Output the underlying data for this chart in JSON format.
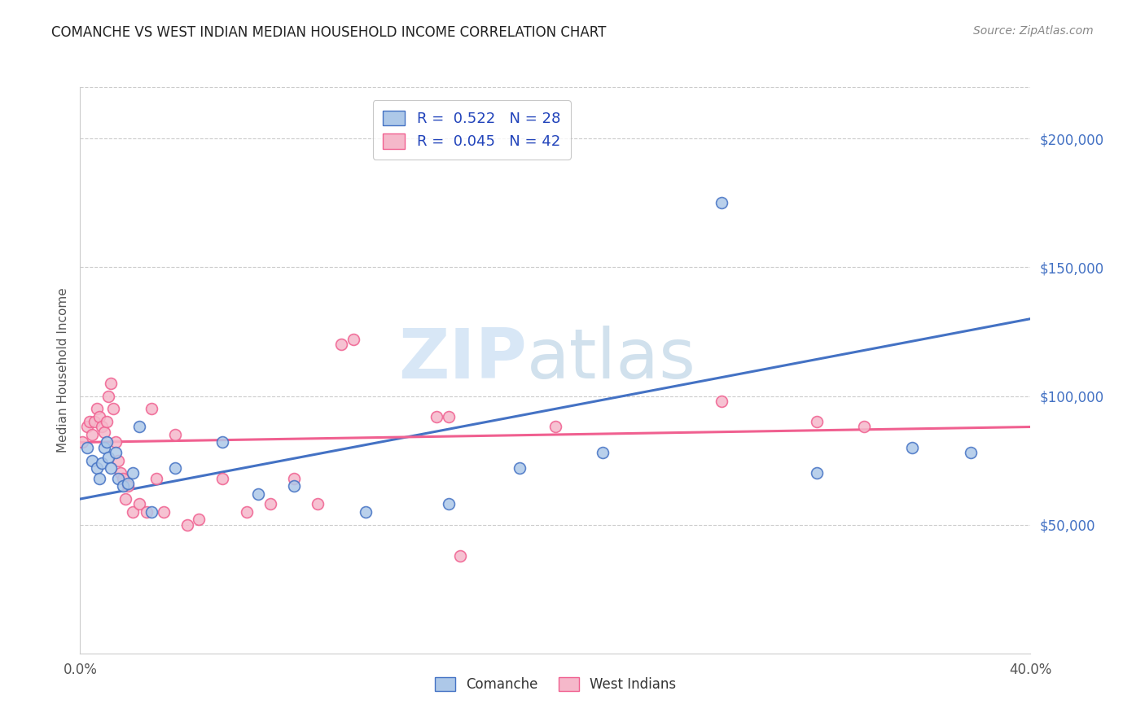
{
  "title": "COMANCHE VS WEST INDIAN MEDIAN HOUSEHOLD INCOME CORRELATION CHART",
  "source": "Source: ZipAtlas.com",
  "ylabel": "Median Household Income",
  "x_min": 0.0,
  "x_max": 0.4,
  "y_min": 0,
  "y_max": 220000,
  "x_ticks": [
    0.0,
    0.05,
    0.1,
    0.15,
    0.2,
    0.25,
    0.3,
    0.35,
    0.4
  ],
  "x_tick_labels": [
    "0.0%",
    "",
    "",
    "",
    "",
    "",
    "",
    "",
    "40.0%"
  ],
  "y_ticks_right": [
    50000,
    100000,
    150000,
    200000
  ],
  "y_tick_labels_right": [
    "$50,000",
    "$100,000",
    "$150,000",
    "$200,000"
  ],
  "comanche_R": 0.522,
  "comanche_N": 28,
  "west_indian_R": 0.045,
  "west_indian_N": 42,
  "comanche_color": "#adc8e8",
  "west_indian_color": "#f5b8ca",
  "comanche_line_color": "#4472c4",
  "west_indian_line_color": "#f06090",
  "legend_label_1": "Comanche",
  "legend_label_2": "West Indians",
  "watermark_zip": "ZIP",
  "watermark_atlas": "atlas",
  "background_color": "#ffffff",
  "grid_color": "#cccccc",
  "comanche_x": [
    0.003,
    0.005,
    0.007,
    0.008,
    0.009,
    0.01,
    0.011,
    0.012,
    0.013,
    0.015,
    0.016,
    0.018,
    0.02,
    0.022,
    0.025,
    0.03,
    0.04,
    0.06,
    0.075,
    0.09,
    0.12,
    0.155,
    0.185,
    0.22,
    0.27,
    0.31,
    0.35,
    0.375
  ],
  "comanche_y": [
    80000,
    75000,
    72000,
    68000,
    74000,
    80000,
    82000,
    76000,
    72000,
    78000,
    68000,
    65000,
    66000,
    70000,
    88000,
    55000,
    72000,
    82000,
    62000,
    65000,
    55000,
    58000,
    72000,
    78000,
    175000,
    70000,
    80000,
    78000
  ],
  "west_indian_x": [
    0.001,
    0.003,
    0.004,
    0.005,
    0.006,
    0.007,
    0.008,
    0.009,
    0.01,
    0.011,
    0.012,
    0.013,
    0.014,
    0.015,
    0.016,
    0.017,
    0.018,
    0.019,
    0.02,
    0.022,
    0.025,
    0.028,
    0.03,
    0.032,
    0.035,
    0.04,
    0.045,
    0.05,
    0.06,
    0.07,
    0.08,
    0.09,
    0.1,
    0.11,
    0.115,
    0.15,
    0.155,
    0.16,
    0.2,
    0.27,
    0.31,
    0.33
  ],
  "west_indian_y": [
    82000,
    88000,
    90000,
    85000,
    90000,
    95000,
    92000,
    88000,
    86000,
    90000,
    100000,
    105000,
    95000,
    82000,
    75000,
    70000,
    68000,
    60000,
    65000,
    55000,
    58000,
    55000,
    95000,
    68000,
    55000,
    85000,
    50000,
    52000,
    68000,
    55000,
    58000,
    68000,
    58000,
    120000,
    122000,
    92000,
    92000,
    38000,
    88000,
    98000,
    90000,
    88000
  ]
}
